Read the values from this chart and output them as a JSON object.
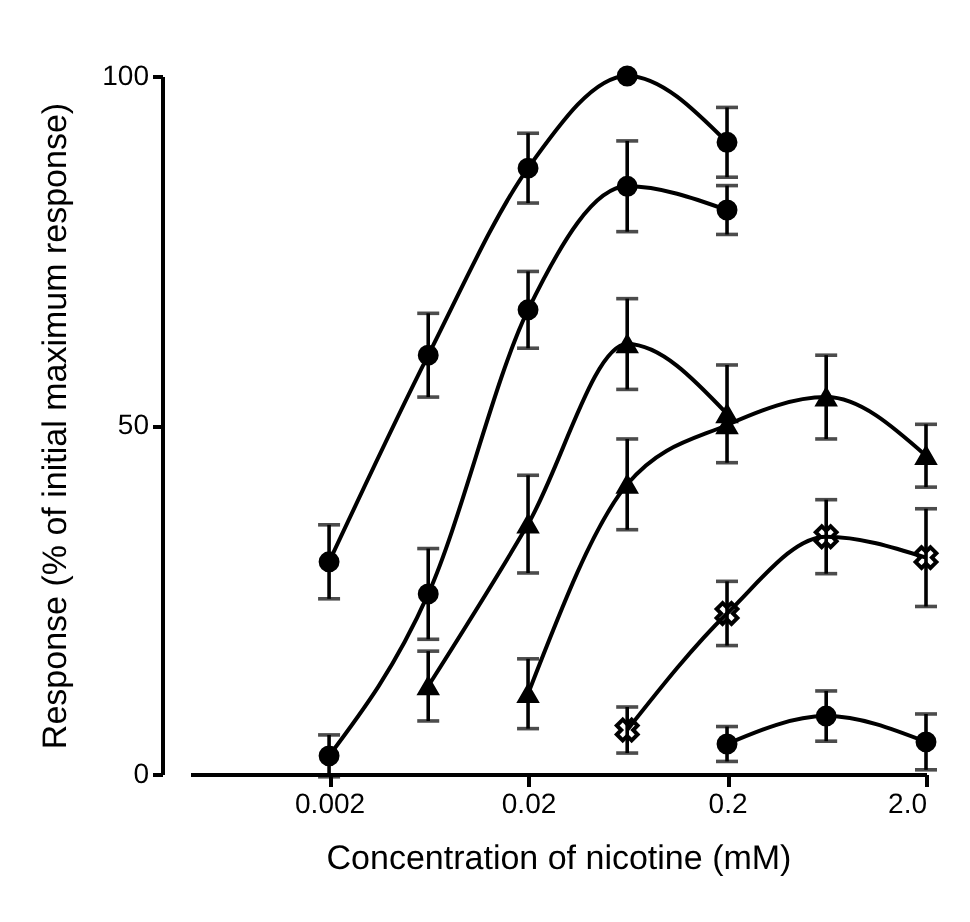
{
  "chart_data": {
    "type": "line",
    "xlabel": "Concentration of nicotine (mM)",
    "ylabel": "Response (% of initial maximum response)",
    "log": "x",
    "xlim": [
      0.0004,
      2
    ],
    "xticks": [
      0.002,
      0.02,
      0.2,
      {
        "value": 2,
        "label": "2.0"
      }
    ],
    "ylim": [
      0,
      100
    ],
    "yticks": [
      0,
      50,
      100
    ],
    "grid": false,
    "line_style": "solid",
    "series": [
      {
        "color": "#000000",
        "marker": "circle",
        "x": [
          0.002,
          0.0063,
          0.02,
          0.063,
          0.2
        ],
        "values": [
          30.4,
          60,
          86.8,
          100,
          90.5
        ],
        "errors": [
          5.3,
          6,
          5,
          null,
          5
        ]
      },
      {
        "color": "#000000",
        "marker": "circle",
        "x": [
          0.002,
          0.0063,
          0.02,
          0.063,
          0.2
        ],
        "values": [
          2.6,
          25.8,
          66.5,
          84.2,
          80.8
        ],
        "errors": [
          3,
          6.5,
          5.5,
          6.5,
          3.5
        ]
      },
      {
        "color": "#000000",
        "marker": "triangle",
        "x": [
          0.0063,
          0.02,
          0.063,
          0.2
        ],
        "values": [
          12.6,
          35.8,
          61.6,
          51.6
        ],
        "errors": [
          5,
          7,
          6.5,
          7
        ]
      },
      {
        "color": "#000000",
        "marker": "triangle",
        "x": [
          0.02,
          0.063,
          0.2,
          0.63,
          2
        ],
        "values": [
          11.5,
          41.5,
          50,
          54,
          45.6
        ],
        "errors": [
          5,
          6.5,
          null,
          6,
          4.5
        ]
      },
      {
        "color": "#000000",
        "marker": "cross",
        "x": [
          0.063,
          0.2,
          0.63,
          2
        ],
        "values": [
          6.3,
          23,
          34,
          31
        ],
        "errors": [
          3.3,
          4.6,
          5.3,
          7
        ]
      },
      {
        "color": "#000000",
        "marker": "circle",
        "x": [
          0.2,
          0.63,
          2
        ],
        "values": [
          4.3,
          8.3,
          4.6
        ],
        "errors": [
          2.5,
          3.6,
          4
        ]
      }
    ]
  }
}
